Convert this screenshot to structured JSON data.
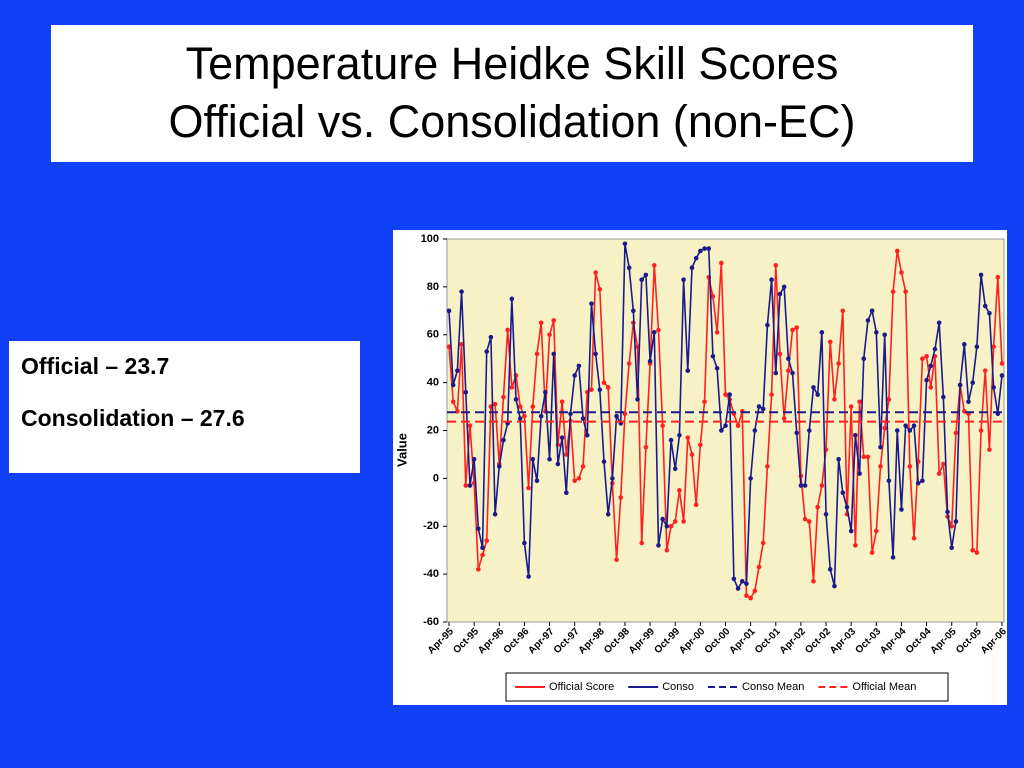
{
  "slide": {
    "title": [
      "Temperature Heidke Skill Scores",
      "Official vs. Consolidation (non-EC)"
    ],
    "textbox": [
      "Official – 23.7",
      "Consolidation – 27.6"
    ]
  },
  "chart_data": {
    "type": "line",
    "ylabel": "Value",
    "ylim": [
      -60,
      100
    ],
    "yticks": [
      -60,
      -40,
      -20,
      0,
      20,
      40,
      60,
      80,
      100
    ],
    "legend": "bottom",
    "background": "#f7f2c6",
    "categories": [
      "Apr-95",
      null,
      null,
      null,
      null,
      null,
      "Oct-95",
      null,
      null,
      null,
      null,
      null,
      "Apr-96",
      null,
      null,
      null,
      null,
      null,
      "Oct-96",
      null,
      null,
      null,
      null,
      null,
      "Apr-97",
      null,
      null,
      null,
      null,
      null,
      "Oct-97",
      null,
      null,
      null,
      null,
      null,
      "Apr-98",
      null,
      null,
      null,
      null,
      null,
      "Oct-98",
      null,
      null,
      null,
      null,
      null,
      "Apr-99",
      null,
      null,
      null,
      null,
      null,
      "Oct-99",
      null,
      null,
      null,
      null,
      null,
      "Apr-00",
      null,
      null,
      null,
      null,
      null,
      "Oct-00",
      null,
      null,
      null,
      null,
      null,
      "Apr-01",
      null,
      null,
      null,
      null,
      null,
      "Oct-01",
      null,
      null,
      null,
      null,
      null,
      "Apr-02",
      null,
      null,
      null,
      null,
      null,
      "Oct-02",
      null,
      null,
      null,
      null,
      null,
      "Apr-03",
      null,
      null,
      null,
      null,
      null,
      "Oct-03",
      null,
      null,
      null,
      null,
      null,
      "Apr-04",
      null,
      null,
      null,
      null,
      null,
      "Oct-04",
      null,
      null,
      null,
      null,
      null,
      "Apr-05",
      null,
      null,
      null,
      null,
      null,
      "Oct-05",
      null,
      null,
      null,
      null,
      null,
      "Apr-06"
    ],
    "series": [
      {
        "name": "Official Score",
        "color": "#ff2020",
        "values": [
          55,
          32,
          28,
          56,
          -3,
          22,
          -2,
          -38,
          -32,
          -26,
          30,
          31,
          6,
          34,
          62,
          38,
          43,
          30,
          26,
          -4,
          30,
          52,
          65,
          28,
          60,
          66,
          14,
          32,
          10,
          24,
          -1,
          0,
          5,
          36,
          37,
          86,
          79,
          40,
          38,
          -2,
          -34,
          -8,
          27,
          48,
          65,
          55,
          -27,
          13,
          48,
          89,
          62,
          22,
          -30,
          -20,
          -18,
          -5,
          -18,
          17,
          10,
          -11,
          14,
          32,
          84,
          76,
          61,
          90,
          35,
          33,
          27,
          22,
          28,
          -49,
          -50,
          -47,
          -37,
          -27,
          5,
          35,
          89,
          52,
          25,
          45,
          62,
          63,
          1,
          -17,
          -18,
          -43,
          -12,
          -3,
          12,
          57,
          33,
          48,
          70,
          -15,
          30,
          -28,
          32,
          9,
          9,
          -31,
          -22,
          5,
          21,
          33,
          78,
          95,
          86,
          78,
          5,
          -25,
          7,
          50,
          51,
          38,
          51,
          2,
          6,
          -16,
          -20,
          19,
          39,
          28,
          27,
          -30,
          -31,
          20,
          45,
          12,
          55,
          84,
          48
        ]
      },
      {
        "name": "Conso",
        "color": "#1a1a8c",
        "values": [
          70,
          39,
          45,
          78,
          36,
          -3,
          8,
          -21,
          -29,
          53,
          59,
          -15,
          5,
          16,
          23,
          75,
          33,
          25,
          -27,
          -41,
          8,
          -1,
          26,
          36,
          8,
          52,
          6,
          17,
          -6,
          27,
          43,
          47,
          25,
          18,
          73,
          52,
          37,
          7,
          -15,
          0,
          26,
          23,
          98,
          88,
          70,
          33,
          83,
          85,
          49,
          61,
          -28,
          -17,
          -20,
          16,
          4,
          18,
          83,
          45,
          88,
          92,
          95,
          96,
          96,
          51,
          46,
          20,
          22,
          35,
          -42,
          -46,
          -43,
          -44,
          0,
          20,
          30,
          29,
          64,
          83,
          44,
          77,
          80,
          50,
          44,
          19,
          -3,
          -3,
          20,
          38,
          35,
          61,
          -15,
          -38,
          -45,
          8,
          -6,
          -12,
          -22,
          18,
          2,
          50,
          66,
          70,
          61,
          13,
          60,
          -1,
          -33,
          20,
          -13,
          22,
          20,
          22,
          -2,
          -1,
          41,
          47,
          54,
          65,
          34,
          -14,
          -29,
          -18,
          39,
          56,
          32,
          40,
          55,
          85,
          72,
          69,
          38,
          27,
          43
        ]
      },
      {
        "name": "Conso Mean",
        "color": "#1a1a8c",
        "dashed": true,
        "value": 27.6
      },
      {
        "name": "Official Mean",
        "color": "#ff2020",
        "dashed": true,
        "value": 23.7
      }
    ]
  }
}
